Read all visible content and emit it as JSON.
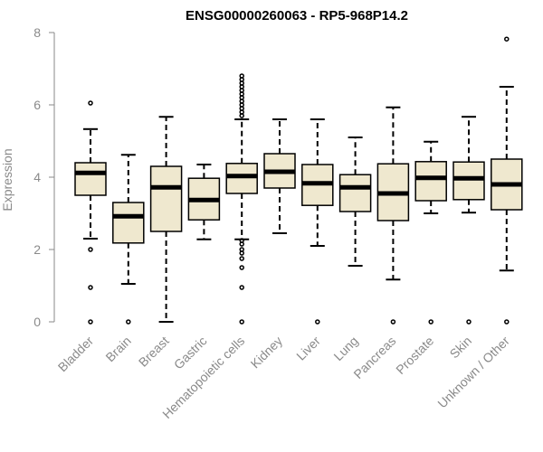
{
  "chart_data": {
    "type": "boxplot",
    "title": "ENSG00000260063 - RP5-968P14.2",
    "ylabel": "Expression",
    "xlabel": "",
    "ylim": [
      0,
      8
    ],
    "yticks": [
      0,
      2,
      4,
      6,
      8
    ],
    "box_fill": "#efe8cf",
    "categories": [
      "Bladder",
      "Brain",
      "Breast",
      "Gastric",
      "Hematopoietic cells",
      "Kidney",
      "Liver",
      "Lung",
      "Pancreas",
      "Prostate",
      "Skin",
      "Unknown / Other"
    ],
    "boxes": [
      {
        "category": "Bladder",
        "whisker_low": 2.3,
        "q1": 3.5,
        "median": 4.12,
        "q3": 4.4,
        "whisker_high": 5.33,
        "outliers": [
          6.05,
          2.0,
          0.95,
          0.0
        ]
      },
      {
        "category": "Brain",
        "whisker_low": 1.05,
        "q1": 2.18,
        "median": 2.92,
        "q3": 3.3,
        "whisker_high": 4.62,
        "outliers": [
          0.0
        ]
      },
      {
        "category": "Breast",
        "whisker_low": 0.0,
        "q1": 2.5,
        "median": 3.72,
        "q3": 4.3,
        "whisker_high": 5.67,
        "outliers": []
      },
      {
        "category": "Gastric",
        "whisker_low": 2.28,
        "q1": 2.82,
        "median": 3.37,
        "q3": 3.97,
        "whisker_high": 4.35,
        "outliers": []
      },
      {
        "category": "Hematopoietic cells",
        "whisker_low": 2.28,
        "q1": 3.55,
        "median": 4.03,
        "q3": 4.38,
        "whisker_high": 5.6,
        "outliers": [
          6.8,
          6.7,
          6.6,
          6.5,
          6.4,
          6.3,
          6.2,
          6.1,
          6.0,
          5.9,
          5.8,
          5.7,
          2.25,
          2.15,
          2.0,
          1.9,
          1.75,
          1.5,
          0.95,
          0.0
        ]
      },
      {
        "category": "Kidney",
        "whisker_low": 2.45,
        "q1": 3.7,
        "median": 4.15,
        "q3": 4.65,
        "whisker_high": 5.6,
        "outliers": []
      },
      {
        "category": "Liver",
        "whisker_low": 2.1,
        "q1": 3.22,
        "median": 3.83,
        "q3": 4.35,
        "whisker_high": 5.6,
        "outliers": [
          0.0
        ]
      },
      {
        "category": "Lung",
        "whisker_low": 1.55,
        "q1": 3.05,
        "median": 3.72,
        "q3": 4.07,
        "whisker_high": 5.1,
        "outliers": []
      },
      {
        "category": "Pancreas",
        "whisker_low": 1.17,
        "q1": 2.8,
        "median": 3.55,
        "q3": 4.37,
        "whisker_high": 5.93,
        "outliers": [
          0.0
        ]
      },
      {
        "category": "Prostate",
        "whisker_low": 3.0,
        "q1": 3.35,
        "median": 3.98,
        "q3": 4.43,
        "whisker_high": 4.98,
        "outliers": [
          0.0
        ]
      },
      {
        "category": "Skin",
        "whisker_low": 3.02,
        "q1": 3.38,
        "median": 3.97,
        "q3": 4.42,
        "whisker_high": 5.67,
        "outliers": [
          0.0
        ]
      },
      {
        "category": "Unknown / Other",
        "whisker_low": 1.42,
        "q1": 3.1,
        "median": 3.8,
        "q3": 4.5,
        "whisker_high": 6.5,
        "outliers": [
          7.82,
          0.0
        ]
      }
    ]
  }
}
